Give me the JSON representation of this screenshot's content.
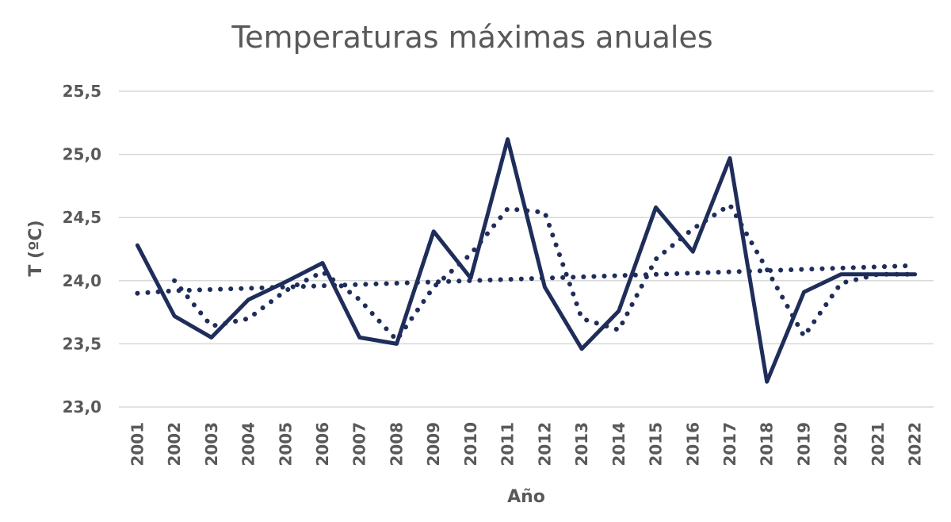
{
  "chart_data": {
    "type": "line",
    "title": "Temperaturas máximas anuales",
    "xlabel": "Año",
    "ylabel": "T (ºC)",
    "ylim": [
      23.0,
      25.5
    ],
    "yticks": [
      "23,0",
      "23,5",
      "24,0",
      "24,5",
      "25,0",
      "25,5"
    ],
    "x": [
      "2001",
      "2002",
      "2003",
      "2004",
      "2005",
      "2006",
      "2007",
      "2008",
      "2009",
      "2010",
      "2011",
      "2012",
      "2013",
      "2014",
      "2015",
      "2016",
      "2017",
      "2018",
      "2019",
      "2020",
      "2021",
      "2022"
    ],
    "grid": true,
    "series": [
      {
        "values": [
          24.28,
          23.72,
          23.55,
          23.85,
          23.99,
          24.14,
          23.55,
          23.5,
          24.39,
          24.02,
          25.12,
          23.95,
          23.46,
          23.76,
          24.58,
          24.23,
          24.97,
          23.2,
          23.91,
          24.05,
          24.05,
          24.05
        ],
        "style": "solid"
      },
      {
        "values": [
          null,
          24.0,
          23.64,
          23.7,
          23.92,
          24.07,
          23.85,
          23.53,
          23.95,
          24.21,
          24.57,
          24.54,
          23.7,
          23.61,
          24.17,
          24.41,
          24.6,
          24.09,
          23.56,
          23.98,
          24.05,
          24.05
        ],
        "style": "dotted"
      },
      {
        "values": [
          23.9,
          23.92,
          23.93,
          23.94,
          23.95,
          23.96,
          23.97,
          23.98,
          23.99,
          24.0,
          24.01,
          24.02,
          24.03,
          24.04,
          24.05,
          24.06,
          24.07,
          24.08,
          24.09,
          24.1,
          24.11,
          24.12
        ],
        "style": "dotted"
      }
    ],
    "colors": {
      "series": "#1f2d5a",
      "grid": "#d9d9d9",
      "text": "#595959"
    }
  }
}
